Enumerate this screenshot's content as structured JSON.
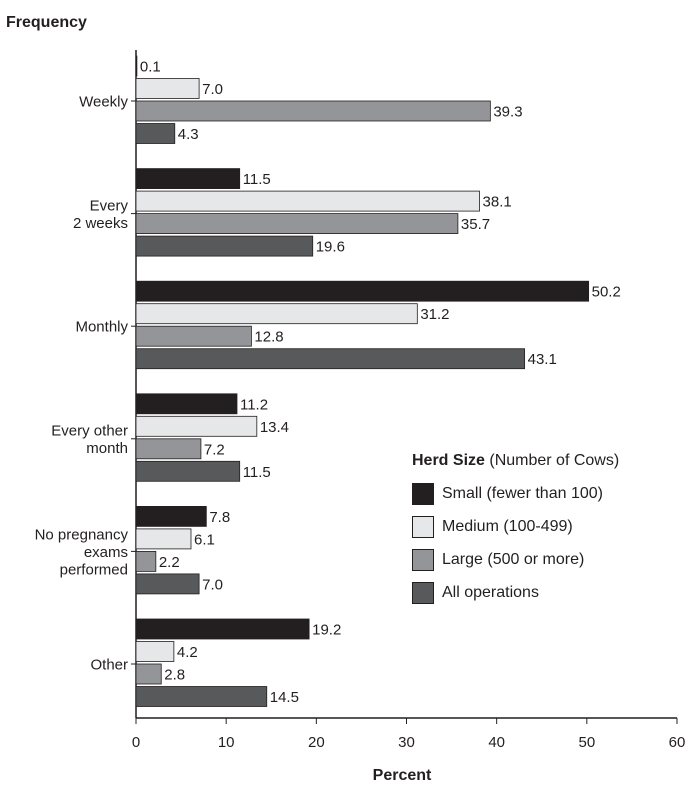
{
  "chart_data": {
    "type": "bar",
    "orientation": "horizontal",
    "ylabel": "Frequency",
    "xlabel": "Percent",
    "xlim": [
      0,
      60
    ],
    "xticks": [
      0,
      10,
      20,
      30,
      40,
      50,
      60
    ],
    "grid": false,
    "categories": [
      [
        "Weekly"
      ],
      [
        "Every",
        "2 weeks"
      ],
      [
        "Monthly"
      ],
      [
        "Every other",
        "month"
      ],
      [
        "No pregnancy",
        "exams",
        "performed"
      ],
      [
        "Other"
      ]
    ],
    "series": [
      {
        "name": "Small (fewer than 100)",
        "color": "#231f20",
        "values": [
          0.1,
          11.5,
          50.2,
          11.2,
          7.8,
          19.2
        ]
      },
      {
        "name": "Medium (100-499)",
        "color": "#e6e7e8",
        "values": [
          7.0,
          38.1,
          31.2,
          13.4,
          6.1,
          4.2
        ]
      },
      {
        "name": "Large (500 or more)",
        "color": "#939598",
        "values": [
          39.3,
          35.7,
          12.8,
          7.2,
          2.2,
          2.8
        ]
      },
      {
        "name": "All operations",
        "color": "#58595b",
        "values": [
          4.3,
          19.6,
          43.1,
          11.5,
          7.0,
          14.5
        ]
      }
    ],
    "legend": {
      "position": "bottom-right",
      "title_bold": "Herd Size",
      "title_rest": " (Number of Cows)"
    }
  }
}
